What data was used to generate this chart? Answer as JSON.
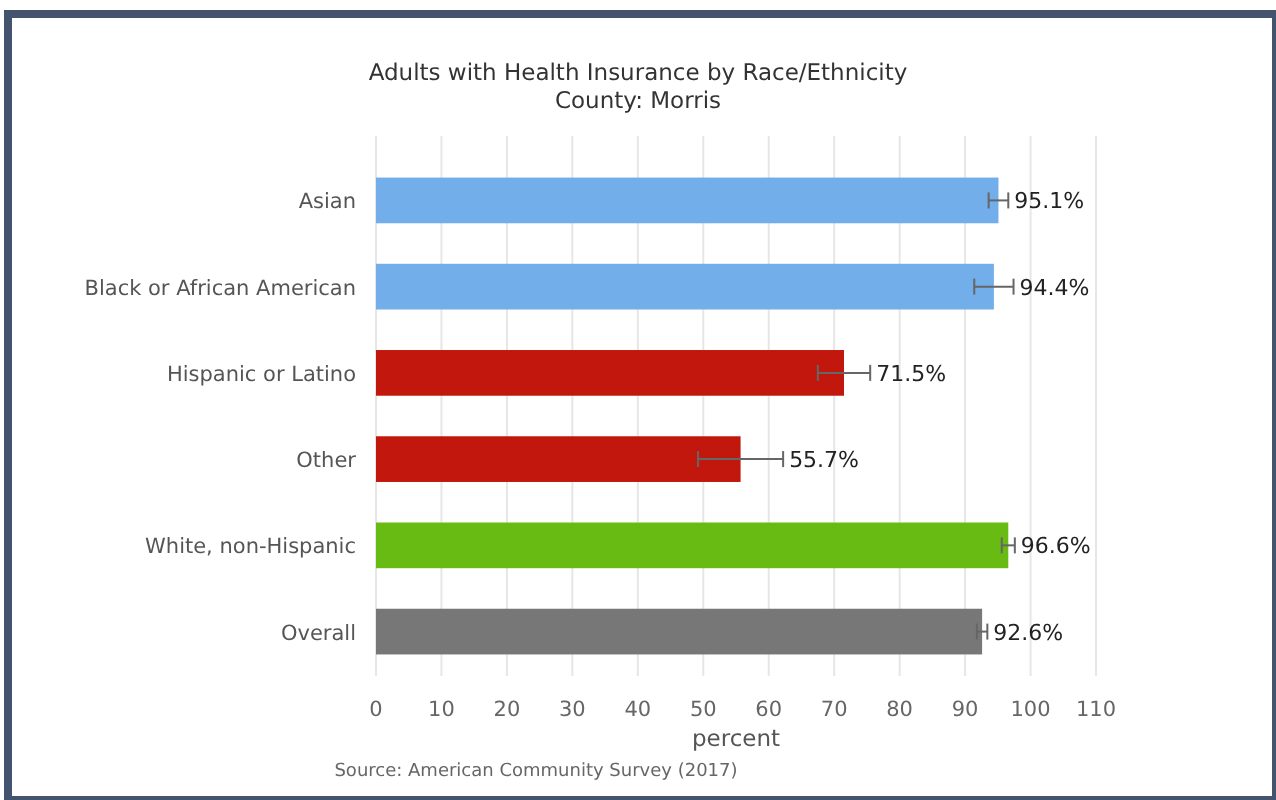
{
  "chart_data": {
    "type": "bar",
    "orientation": "horizontal",
    "title": "Adults with Health Insurance by Race/Ethnicity",
    "subtitle": "County: Morris",
    "xlabel": "percent",
    "categories": [
      "Asian",
      "Black or African American",
      "Hispanic or Latino",
      "Other",
      "White, non-Hispanic",
      "Overall"
    ],
    "values": [
      95.1,
      94.4,
      71.5,
      55.7,
      96.6,
      92.6
    ],
    "value_labels": [
      "95.1%",
      "94.4%",
      "71.5%",
      "55.7%",
      "96.6%",
      "92.6%"
    ],
    "errors": [
      1.5,
      3,
      4,
      6.5,
      1,
      0.8
    ],
    "colors": [
      "#72aeea",
      "#72aeea",
      "#c2170c",
      "#c2170c",
      "#68bb12",
      "#777777"
    ],
    "xlim": [
      0,
      110
    ],
    "xticks": [
      0,
      10,
      20,
      30,
      40,
      50,
      60,
      70,
      80,
      90,
      100,
      110
    ],
    "grid": "x",
    "annotations": [
      "Source: American Community Survey (2017)"
    ]
  }
}
